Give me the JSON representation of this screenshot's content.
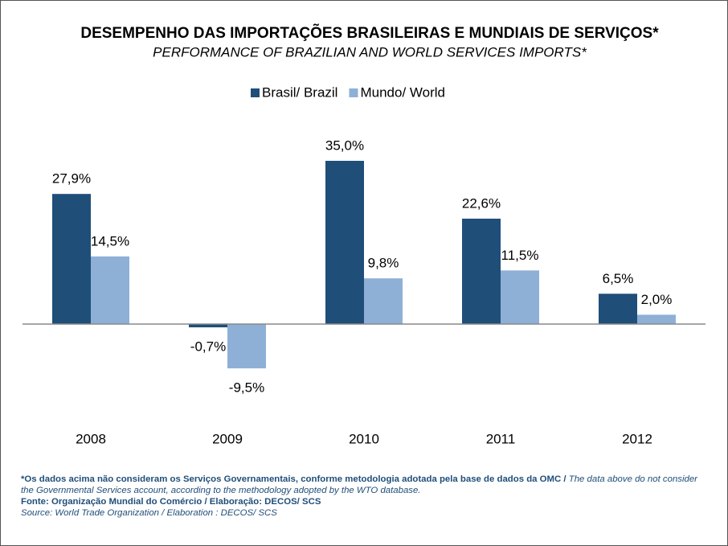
{
  "chart_data": {
    "type": "bar",
    "title": "DESEMPENHO DAS IMPORTAÇÕES BRASILEIRAS E MUNDIAIS DE SERVIÇOS*",
    "subtitle": "PERFORMANCE OF BRAZILIAN AND WORLD SERVICES IMPORTS*",
    "categories": [
      "2008",
      "2009",
      "2010",
      "2011",
      "2012"
    ],
    "series": [
      {
        "name": "Brasil/ Brazil",
        "color": "#1f4e79",
        "values": [
          27.9,
          -0.7,
          35.0,
          22.6,
          6.5
        ],
        "value_labels": [
          "27,9%",
          "-0,7%",
          "35,0%",
          "22,6%",
          "6,5%"
        ]
      },
      {
        "name": "Mundo/ World",
        "color": "#8eb0d6",
        "values": [
          14.5,
          -9.5,
          9.8,
          11.5,
          2.0
        ],
        "value_labels": [
          "14,5%",
          "-9,5%",
          "9,8%",
          "11,5%",
          "2,0%"
        ]
      }
    ],
    "legend": "top",
    "notes": {
      "note_pt": "*Os dados acima não consideram os Serviços Governamentais, conforme metodologia adotada pela base de dados da OMC / ",
      "note_en": "The data above do not consider the Governmental Services account, according to the methodology adopted by the WTO database.",
      "source_pt": "Fonte: Organização Mundial do Comércio / Elaboração: DECOS/ SCS",
      "source_en": "Source: World Trade Organization / Elaboration : DECOS/ SCS"
    }
  }
}
